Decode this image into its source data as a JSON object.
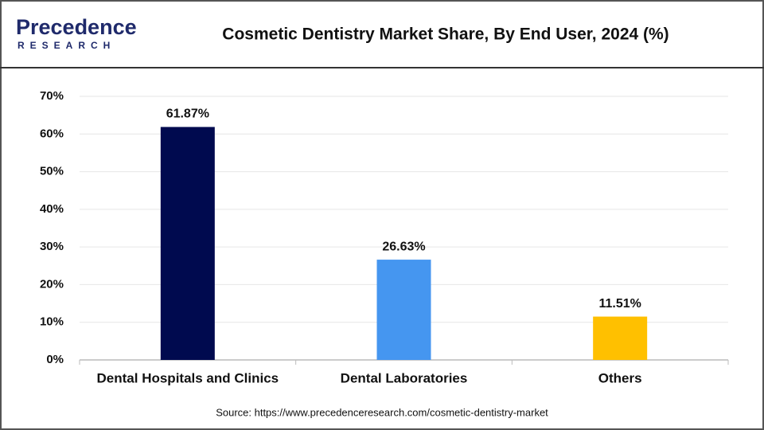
{
  "logo": {
    "name": "Precedence",
    "tagline": "RESEARCH"
  },
  "chart_data": {
    "type": "bar",
    "title": "Cosmetic Dentistry Market Share, By End User, 2024 (%)",
    "categories": [
      "Dental Hospitals and Clinics",
      "Dental Laboratories",
      "Others"
    ],
    "values": [
      61.87,
      26.63,
      11.51
    ],
    "value_labels": [
      "61.87%",
      "26.63%",
      "11.51%"
    ],
    "colors": [
      "#000a4f",
      "#4596f0",
      "#ffc000"
    ],
    "ylim": [
      0,
      70
    ],
    "yticks": [
      {
        "value": 0,
        "label": "0%"
      },
      {
        "value": 10,
        "label": "10%"
      },
      {
        "value": 20,
        "label": "20%"
      },
      {
        "value": 30,
        "label": "30%"
      },
      {
        "value": 40,
        "label": "40%"
      },
      {
        "value": 50,
        "label": "50%"
      },
      {
        "value": 60,
        "label": "60%"
      },
      {
        "value": 70,
        "label": "70%"
      }
    ],
    "grid": true,
    "source": "Source: https://www.precedenceresearch.com/cosmetic-dentistry-market"
  }
}
